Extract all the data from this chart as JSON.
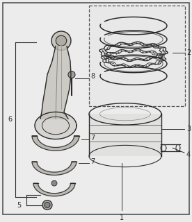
{
  "bg_color": "#ececec",
  "line_color": "#2a2a2a",
  "label_color": "#2a2a2a",
  "fig_width": 2.76,
  "fig_height": 3.2,
  "dpi": 100,
  "label_fontsize": 7.0
}
